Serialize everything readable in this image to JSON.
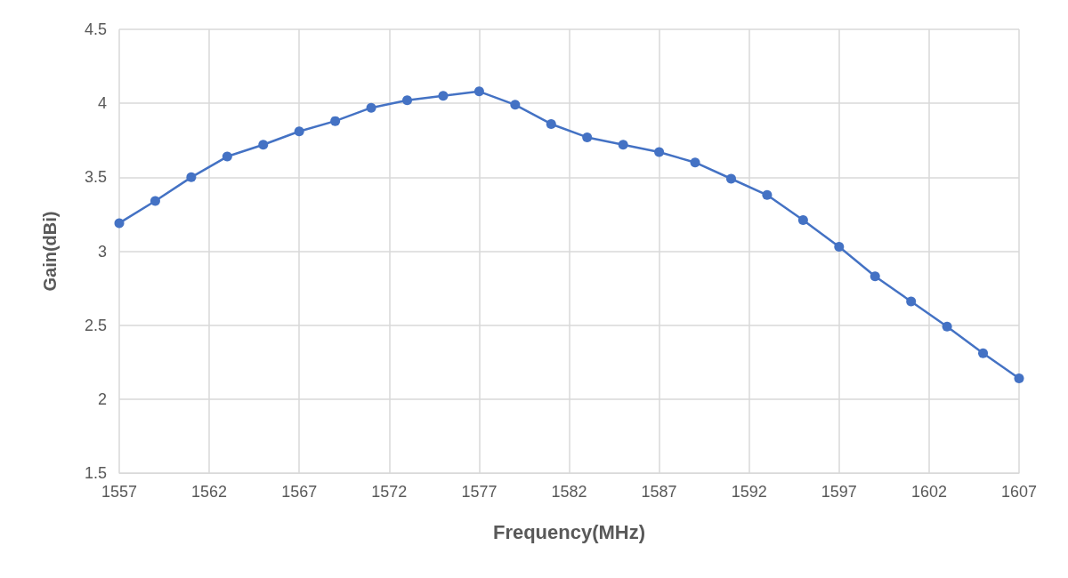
{
  "chart_data": {
    "type": "line",
    "xlabel": "Frequency(MHz)",
    "ylabel": "Gain(dBi)",
    "x": [
      1557,
      1559,
      1561,
      1563,
      1565,
      1567,
      1569,
      1571,
      1573,
      1575,
      1577,
      1579,
      1581,
      1583,
      1585,
      1587,
      1589,
      1591,
      1593,
      1595,
      1597,
      1599,
      1601,
      1603,
      1605,
      1607
    ],
    "series": [
      {
        "color": "#4472c4",
        "values": [
          3.19,
          3.34,
          3.5,
          3.64,
          3.72,
          3.81,
          3.88,
          3.97,
          4.02,
          4.05,
          4.08,
          3.99,
          3.86,
          3.77,
          3.72,
          3.67,
          3.6,
          3.49,
          3.38,
          3.21,
          3.03,
          2.83,
          2.66,
          2.49,
          2.31,
          2.14
        ]
      }
    ],
    "xlim": [
      1557,
      1607
    ],
    "xticks": [
      1557,
      1562,
      1567,
      1572,
      1577,
      1582,
      1587,
      1592,
      1597,
      1602,
      1607
    ],
    "ylim": [
      1.5,
      4.5
    ],
    "yticks": [
      1.5,
      2,
      2.5,
      3,
      3.5,
      4,
      4.5
    ],
    "grid": true,
    "marker": "circle",
    "line_style": "solid"
  }
}
